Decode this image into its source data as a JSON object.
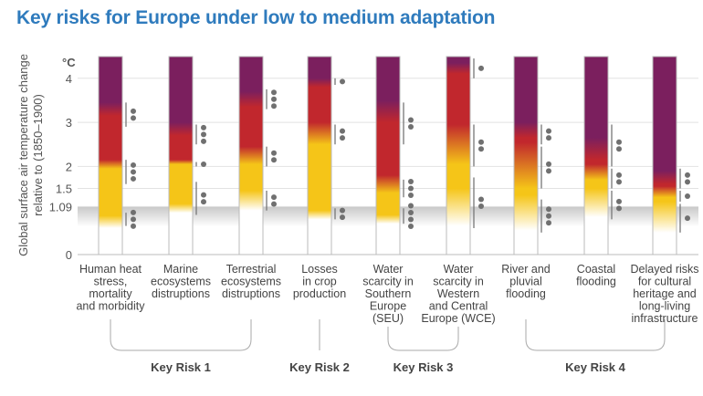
{
  "title": "Key risks for Europe under low to medium adaptation",
  "chart_data": {
    "type": "burning-embers",
    "title": "Key risks for Europe under low to medium adaptation",
    "ylabel": "Global surface air temperature change relative to (1850–1900)",
    "yunit": "°C",
    "ylim": [
      0,
      4.5
    ],
    "yticks": [
      "0",
      "1.09",
      "1.5",
      "2",
      "3",
      "4"
    ],
    "ytick_values": [
      0,
      1.09,
      1.5,
      2,
      3,
      4
    ],
    "observed_warming": 1.09,
    "colors": {
      "white": "#ffffff",
      "yellow": "#f5c518",
      "red": "#c1272d",
      "purple": "#7b1f5e",
      "accent": "#2f7bbd"
    },
    "bars": [
      {
        "label": [
          "Human heat",
          "stress,",
          "mortality",
          "and morbidity"
        ],
        "stops": [
          [
            0.6,
            "white"
          ],
          [
            0.88,
            "yellow"
          ],
          [
            1.95,
            "yellow"
          ],
          [
            2.15,
            "red"
          ],
          [
            3.15,
            "red"
          ],
          [
            3.45,
            "purple"
          ]
        ],
        "confidence": [
          {
            "from": 2.9,
            "to": 3.45,
            "dots": 2
          },
          {
            "from": 1.6,
            "to": 2.15,
            "dots": 3
          },
          {
            "from": 0.65,
            "to": 0.95,
            "dots": 3
          }
        ]
      },
      {
        "label": [
          "Marine",
          "ecosystems",
          "distruptions"
        ],
        "stops": [
          [
            0.95,
            "white"
          ],
          [
            1.15,
            "yellow"
          ],
          [
            2.05,
            "yellow"
          ],
          [
            2.15,
            "red"
          ],
          [
            2.7,
            "red"
          ],
          [
            3.0,
            "purple"
          ]
        ],
        "confidence": [
          {
            "from": 2.5,
            "to": 2.95,
            "dots": 3
          },
          {
            "from": 2.0,
            "to": 2.1,
            "dots": 1
          },
          {
            "from": 0.9,
            "to": 1.65,
            "dots": 2
          }
        ]
      },
      {
        "label": [
          "Terrestrial",
          "ecosystems",
          "distruptions"
        ],
        "stops": [
          [
            1.0,
            "white"
          ],
          [
            1.45,
            "yellow"
          ],
          [
            2.05,
            "yellow"
          ],
          [
            2.45,
            "red"
          ],
          [
            3.35,
            "red"
          ],
          [
            3.7,
            "purple"
          ]
        ],
        "confidence": [
          {
            "from": 3.3,
            "to": 3.75,
            "dots": 3
          },
          {
            "from": 2.0,
            "to": 2.45,
            "dots": 2
          },
          {
            "from": 1.0,
            "to": 1.45,
            "dots": 2
          }
        ]
      },
      {
        "label": [
          "Losses",
          "in crop",
          "production"
        ],
        "stops": [
          [
            0.8,
            "white"
          ],
          [
            1.0,
            "yellow"
          ],
          [
            2.5,
            "yellow"
          ],
          [
            3.0,
            "red"
          ],
          [
            3.8,
            "red"
          ],
          [
            4.0,
            "purple"
          ]
        ],
        "confidence": [
          {
            "from": 3.85,
            "to": 4.0,
            "dots": 1
          },
          {
            "from": 2.5,
            "to": 2.95,
            "dots": 2
          },
          {
            "from": 0.8,
            "to": 1.05,
            "dots": 2
          }
        ]
      },
      {
        "label": [
          "Water",
          "scarcity in",
          "Southern",
          "Europe",
          "(SEU)"
        ],
        "stops": [
          [
            0.7,
            "white"
          ],
          [
            0.9,
            "yellow"
          ],
          [
            1.4,
            "yellow"
          ],
          [
            1.8,
            "red"
          ],
          [
            3.0,
            "red"
          ],
          [
            3.5,
            "purple"
          ]
        ],
        "confidence": [
          {
            "from": 2.5,
            "to": 3.45,
            "dots": 2
          },
          {
            "from": 1.3,
            "to": 1.7,
            "dots": 3
          },
          {
            "from": 0.7,
            "to": 1.05,
            "dots": 4
          }
        ]
      },
      {
        "label": [
          "Water",
          "scarcity in",
          "Western",
          "and Central",
          "Europe (WCE)"
        ],
        "stops": [
          [
            0.65,
            "white"
          ],
          [
            1.5,
            "yellow"
          ],
          [
            2.05,
            "yellow"
          ],
          [
            2.95,
            "red"
          ],
          [
            4.1,
            "red"
          ],
          [
            4.35,
            "purple"
          ]
        ],
        "confidence": [
          {
            "from": 4.0,
            "to": 4.45,
            "dots": 1
          },
          {
            "from": 2.0,
            "to": 2.95,
            "dots": 2
          },
          {
            "from": 0.6,
            "to": 1.75,
            "dots": 2
          }
        ]
      },
      {
        "label": [
          "River and",
          "pluvial",
          "flooding"
        ],
        "stops": [
          [
            0.55,
            "white"
          ],
          [
            1.35,
            "yellow"
          ],
          [
            1.5,
            "yellow"
          ],
          [
            2.55,
            "red"
          ],
          [
            2.65,
            "red"
          ],
          [
            3.0,
            "purple"
          ]
        ],
        "confidence": [
          {
            "from": 2.5,
            "to": 2.95,
            "dots": 2
          },
          {
            "from": 1.5,
            "to": 2.45,
            "dots": 2
          },
          {
            "from": 0.5,
            "to": 1.25,
            "dots": 3
          }
        ]
      },
      {
        "label": [
          "Coastal",
          "flooding"
        ],
        "stops": [
          [
            0.85,
            "white"
          ],
          [
            1.5,
            "yellow"
          ],
          [
            1.7,
            "yellow"
          ],
          [
            2.05,
            "red"
          ],
          [
            2.15,
            "red"
          ],
          [
            2.65,
            "purple"
          ]
        ],
        "confidence": [
          {
            "from": 2.0,
            "to": 2.95,
            "dots": 2
          },
          {
            "from": 1.5,
            "to": 1.95,
            "dots": 2
          },
          {
            "from": 0.8,
            "to": 1.45,
            "dots": 2
          }
        ]
      },
      {
        "label": [
          "Delayed risks",
          "for cultural",
          "heritage and",
          "long-living",
          "infrastructure"
        ],
        "stops": [
          [
            0.5,
            "white"
          ],
          [
            1.2,
            "yellow"
          ],
          [
            1.3,
            "yellow"
          ],
          [
            1.55,
            "red"
          ],
          [
            1.6,
            "red"
          ],
          [
            1.9,
            "purple"
          ]
        ],
        "confidence": [
          {
            "from": 1.5,
            "to": 1.95,
            "dots": 2
          },
          {
            "from": 1.2,
            "to": 1.45,
            "dots": 1
          },
          {
            "from": 0.5,
            "to": 1.15,
            "dots": 1
          }
        ]
      }
    ],
    "groups": [
      {
        "label": "Key Risk 1",
        "bars": [
          0,
          2
        ]
      },
      {
        "label": "Key Risk 2",
        "bars": [
          3,
          3
        ]
      },
      {
        "label": "Key Risk 3",
        "bars": [
          4,
          5
        ]
      },
      {
        "label": "Key Risk 4",
        "bars": [
          6,
          8
        ]
      }
    ]
  }
}
